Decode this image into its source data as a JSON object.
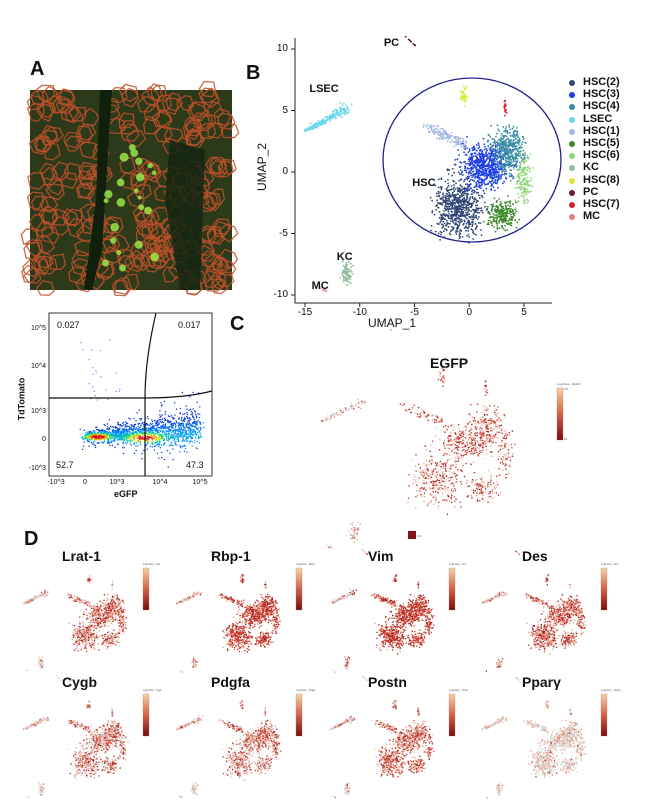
{
  "panels": {
    "a": "A",
    "b": "B",
    "c": "C",
    "d": "D"
  },
  "panel_a": {
    "flow": {
      "xlabel": "eGFP",
      "ylabel": "TdTomato",
      "x_ticks": [
        "-10^3",
        "0",
        "10^3",
        "10^4",
        "10^5"
      ],
      "y_ticks": [
        "10^5",
        "10^4",
        "10^3",
        "0",
        "-10^3"
      ],
      "quadrants": {
        "top_left": "0.027",
        "top_right": "0.017",
        "bottom_left": "52.7",
        "bottom_right": "47.3"
      }
    }
  },
  "chart_data": [
    {
      "type": "scatter",
      "xlabel": "UMAP_1",
      "ylabel": "UMAP_2",
      "xlim": [
        -16,
        7
      ],
      "ylim": [
        -10.5,
        11.5
      ],
      "x_ticks": [
        "-15",
        "-10",
        "-5",
        "0",
        "5"
      ],
      "y_ticks": [
        "10",
        "5",
        "0",
        "-5",
        "-10"
      ],
      "grid": false,
      "legend_position": "right",
      "clusters": [
        {
          "name": "HSC(2)",
          "color": "#2f4673",
          "center": [
            -1,
            -2.8
          ]
        },
        {
          "name": "HSC(3)",
          "color": "#1c3ce6",
          "center": [
            1.5,
            0.5
          ]
        },
        {
          "name": "HSC(4)",
          "color": "#3b8ea6",
          "center": [
            3.5,
            1.8
          ]
        },
        {
          "name": "LSEC",
          "color": "#63d7ea",
          "center": [
            -13,
            4.8
          ]
        },
        {
          "name": "HSC(1)",
          "color": "#a2b9df",
          "center": [
            -1.8,
            2.7
          ]
        },
        {
          "name": "HSC(5)",
          "color": "#3c8a2b",
          "center": [
            3,
            -3.5
          ]
        },
        {
          "name": "HSC(6)",
          "color": "#8fd57c",
          "center": [
            5,
            -0.5
          ]
        },
        {
          "name": "KC",
          "color": "#91bf9c",
          "center": [
            -11.2,
            -8.2
          ]
        },
        {
          "name": "HSC(8)",
          "color": "#d9e832",
          "center": [
            -0.5,
            6.3
          ]
        },
        {
          "name": "PC",
          "color": "#6b1a2c",
          "center": [
            -5.2,
            10.5
          ]
        },
        {
          "name": "HSC(7)",
          "color": "#d32030",
          "center": [
            3.3,
            5.3
          ]
        },
        {
          "name": "MC",
          "color": "#e47a86",
          "center": [
            -13.3,
            -9.6
          ]
        }
      ],
      "annotations": [
        "PC",
        "LSEC",
        "HSC",
        "KC",
        "MC"
      ]
    }
  ],
  "panel_c": {
    "gene": "EGFP",
    "colorbar_title": "Log2 Exp - EGFP",
    "colorbar_max": "0.0",
    "colorbar_min": "16",
    "swatch_label": "0.0",
    "relative_expression": 0.55
  },
  "panel_d": {
    "genes": [
      {
        "name": "Lrat-1",
        "colorbar_title": "Log2 Exp - Lrat",
        "relative_expression": 0.45
      },
      {
        "name": "Rbp-1",
        "colorbar_title": "Log2 Exp - Rbp1",
        "relative_expression": 0.75
      },
      {
        "name": "Vim",
        "colorbar_title": "Log2 Exp - Vim",
        "relative_expression": 0.8
      },
      {
        "name": "Des",
        "colorbar_title": "Log2 Exp - Des",
        "relative_expression": 0.55
      },
      {
        "name": "Cygb",
        "colorbar_title": "Log2 Exp - Cygb",
        "relative_expression": 0.35
      },
      {
        "name": "Pdgfa",
        "colorbar_title": "Log2 Exp - Pdgfa",
        "relative_expression": 0.35
      },
      {
        "name": "Postn",
        "colorbar_title": "Log2 Exp - Postn",
        "relative_expression": 0.45
      },
      {
        "name": "Pparγ",
        "colorbar_title": "Log2 Exp - Pparg",
        "relative_expression": 0.05
      }
    ]
  }
}
